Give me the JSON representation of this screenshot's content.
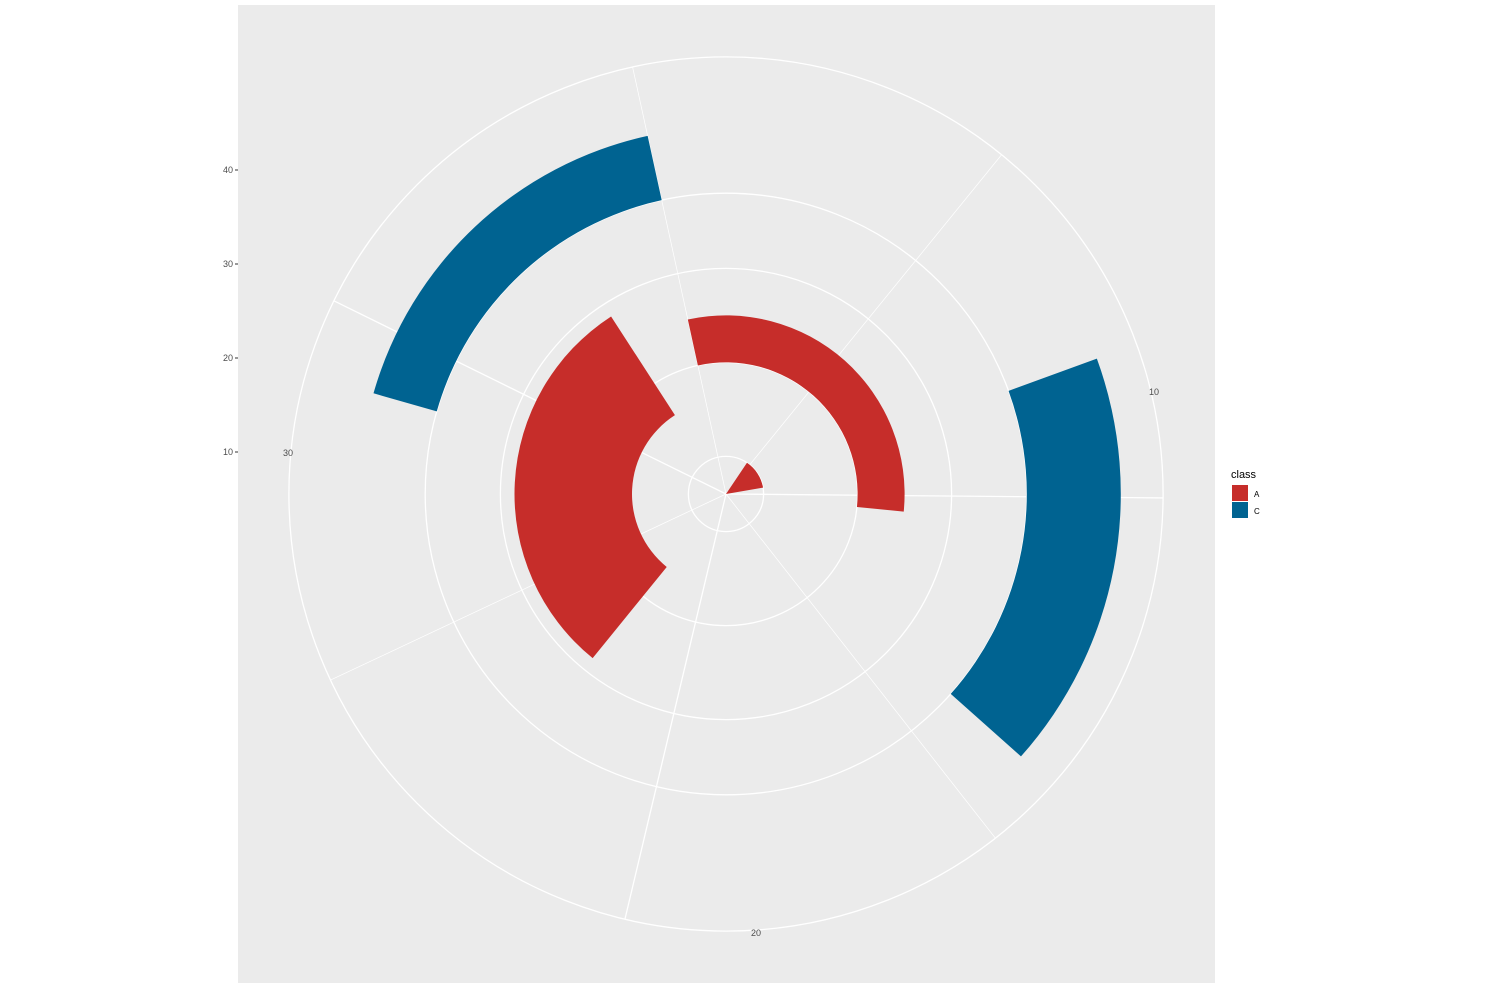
{
  "chart_data": {
    "type": "polar-rect",
    "title": "",
    "xlabel": "",
    "ylabel": "",
    "theta_axis": {
      "range": [
        0,
        35
      ],
      "ticks": [
        10,
        20,
        30
      ],
      "tick_labels": [
        "10",
        "20",
        "30"
      ]
    },
    "radial_axis": {
      "range": [
        0,
        49
      ],
      "ticks": [
        10,
        20,
        30,
        40
      ],
      "tick_labels": [
        "10",
        "20",
        "30",
        "40"
      ]
    },
    "grid": true,
    "legend": {
      "title": "class",
      "position": "right"
    },
    "series": [
      {
        "name": "A",
        "color": "#c62d2a"
      },
      {
        "name": "C",
        "color": "#006391"
      }
    ],
    "segments": [
      {
        "class": "A",
        "xmin": 0.0,
        "xmax": 10.5,
        "ymin": 14,
        "ymax": 19
      },
      {
        "class": "A",
        "xmin": 4.5,
        "xmax": 9.0,
        "ymin": 0,
        "ymax": 4
      },
      {
        "class": "A",
        "xmin": 22.5,
        "xmax": 33.0,
        "ymin": 10,
        "ymax": 22.5
      },
      {
        "class": "C",
        "xmin": 8.0,
        "xmax": 14.0,
        "ymin": 32,
        "ymax": 42
      },
      {
        "class": "C",
        "xmin": 29.0,
        "xmax": 35.0,
        "ymin": 32,
        "ymax": 39
      }
    ]
  }
}
